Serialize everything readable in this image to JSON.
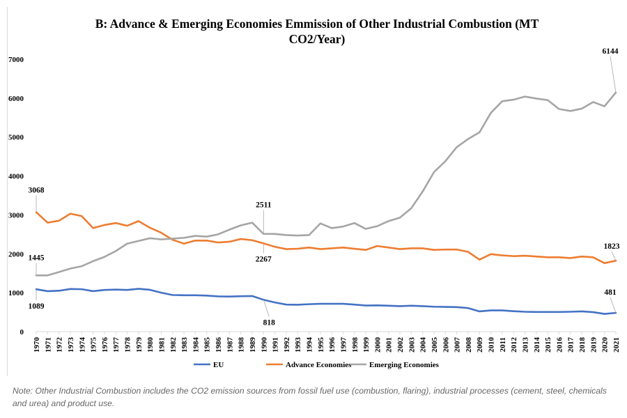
{
  "title_line1": "B: Advance & Emerging Economies Emmission of Other Industrial  Combustion (MT",
  "title_line2": "CO2/Year)",
  "note": "Note: Other Industrial Combustion includes the CO2 emission sources from fossil fuel use (combustion, flaring), industrial processes (cement, steel, chemicals and urea) and product use.",
  "chart_data": {
    "type": "line",
    "title": "B: Advance & Emerging Economies Emmission of Other Industrial  Combustion (MT CO2/Year)",
    "xlabel": "",
    "ylabel": "",
    "ylim": [
      0,
      7000
    ],
    "yticks": [
      0,
      1000,
      2000,
      3000,
      4000,
      5000,
      6000,
      7000
    ],
    "grid": false,
    "legend_position": "bottom",
    "categories": [
      "1970",
      "1971",
      "1972",
      "1973",
      "1974",
      "1975",
      "1976",
      "1977",
      "1978",
      "1979",
      "1980",
      "1981",
      "1982",
      "1983",
      "1984",
      "1985",
      "1986",
      "1987",
      "1988",
      "1989",
      "1990",
      "1991",
      "1992",
      "1993",
      "1994",
      "1995",
      "1996",
      "1997",
      "1998",
      "1999",
      "2000",
      "2001",
      "2002",
      "2003",
      "2004",
      "2005",
      "2006",
      "2007",
      "2008",
      "2009",
      "2010",
      "2011",
      "2012",
      "2013",
      "2014",
      "2015",
      "2016",
      "2017",
      "2018",
      "2019",
      "2020",
      "2021"
    ],
    "series": [
      {
        "name": "EU",
        "color": "#4472c4",
        "values": [
          1089,
          1040,
          1050,
          1095,
          1090,
          1040,
          1070,
          1080,
          1070,
          1100,
          1075,
          1000,
          940,
          935,
          935,
          925,
          905,
          900,
          910,
          915,
          818,
          750,
          695,
          690,
          705,
          715,
          715,
          715,
          695,
          670,
          675,
          665,
          655,
          665,
          655,
          640,
          635,
          630,
          605,
          520,
          545,
          545,
          525,
          510,
          505,
          505,
          505,
          510,
          520,
          500,
          455,
          481
        ]
      },
      {
        "name": "Advance Economies",
        "color": "#ed7d31",
        "values": [
          3068,
          2800,
          2850,
          3030,
          2970,
          2660,
          2740,
          2790,
          2720,
          2840,
          2670,
          2540,
          2360,
          2260,
          2340,
          2340,
          2290,
          2310,
          2380,
          2350,
          2267,
          2180,
          2120,
          2130,
          2160,
          2120,
          2140,
          2160,
          2130,
          2100,
          2200,
          2160,
          2120,
          2140,
          2140,
          2100,
          2110,
          2110,
          2050,
          1850,
          1990,
          1960,
          1940,
          1950,
          1930,
          1910,
          1910,
          1890,
          1930,
          1910,
          1760,
          1823
        ]
      },
      {
        "name": "Emerging Economies",
        "color": "#a5a5a5",
        "values": [
          1445,
          1445,
          1530,
          1620,
          1680,
          1810,
          1920,
          2070,
          2260,
          2330,
          2400,
          2370,
          2390,
          2410,
          2460,
          2440,
          2500,
          2620,
          2730,
          2800,
          2511,
          2510,
          2480,
          2470,
          2480,
          2780,
          2660,
          2700,
          2790,
          2640,
          2710,
          2840,
          2930,
          3170,
          3600,
          4100,
          4380,
          4740,
          4950,
          5120,
          5620,
          5920,
          5960,
          6040,
          5990,
          5950,
          5720,
          5670,
          5730,
          5900,
          5790,
          6144
        ]
      }
    ],
    "annotations": [
      {
        "series": "Advance Economies",
        "category": "1970",
        "label": "3068"
      },
      {
        "series": "Emerging Economies",
        "category": "1970",
        "label": "1445"
      },
      {
        "series": "EU",
        "category": "1970",
        "label": "1089"
      },
      {
        "series": "Emerging Economies",
        "category": "1990",
        "label": "2511"
      },
      {
        "series": "Advance Economies",
        "category": "1990",
        "label": "2267"
      },
      {
        "series": "EU",
        "category": "1990",
        "label": "818"
      },
      {
        "series": "Emerging Economies",
        "category": "2021",
        "label": "6144"
      },
      {
        "series": "Advance Economies",
        "category": "2021",
        "label": "1823"
      },
      {
        "series": "EU",
        "category": "2021",
        "label": "481"
      }
    ]
  }
}
